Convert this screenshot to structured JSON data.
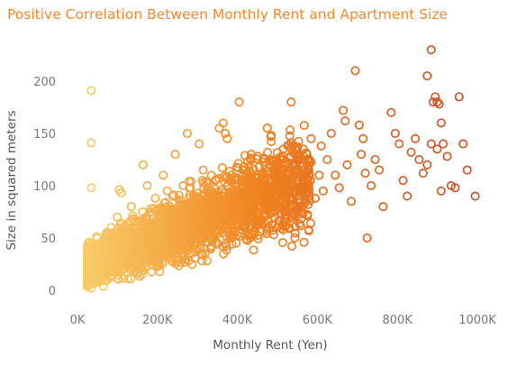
{
  "chart_data": {
    "type": "scatter",
    "title": "Positive Correlation Between Monthly Rent and Apartment Size",
    "xlabel": "Monthly Rent (Yen)",
    "ylabel": "Size in squared meters",
    "xlim": [
      0,
      1000000
    ],
    "ylim": [
      0,
      230
    ],
    "x_ticks": [
      {
        "value": 0,
        "label": "0K"
      },
      {
        "value": 200000,
        "label": "200K"
      },
      {
        "value": 400000,
        "label": "400K"
      },
      {
        "value": 600000,
        "label": "600K"
      },
      {
        "value": 800000,
        "label": "800K"
      },
      {
        "value": 1000000,
        "label": "1000K"
      }
    ],
    "y_ticks": [
      {
        "value": 0,
        "label": "0"
      },
      {
        "value": 50,
        "label": "50"
      },
      {
        "value": 100,
        "label": "100"
      },
      {
        "value": 150,
        "label": "150"
      },
      {
        "value": 200,
        "label": "200"
      }
    ],
    "grid": false,
    "legend": "none",
    "marker": "hollow-circle",
    "color_scale": {
      "low": "#f7cf6a",
      "mid": "#f1811f",
      "high": "#c94f2a"
    },
    "points": [
      [
        30000,
        191
      ],
      [
        30000,
        141
      ],
      [
        30000,
        98
      ],
      [
        30000,
        18
      ],
      [
        35000,
        40
      ],
      [
        40000,
        30
      ],
      [
        45000,
        50
      ],
      [
        50000,
        25
      ],
      [
        55000,
        38
      ],
      [
        60000,
        45
      ],
      [
        65000,
        22
      ],
      [
        70000,
        55
      ],
      [
        75000,
        35
      ],
      [
        80000,
        60
      ],
      [
        85000,
        28
      ],
      [
        90000,
        48
      ],
      [
        95000,
        70
      ],
      [
        100000,
        96
      ],
      [
        105000,
        93
      ],
      [
        110000,
        40
      ],
      [
        120000,
        55
      ],
      [
        130000,
        80
      ],
      [
        140000,
        65
      ],
      [
        150000,
        45
      ],
      [
        160000,
        120
      ],
      [
        170000,
        100
      ],
      [
        180000,
        75
      ],
      [
        190000,
        88
      ],
      [
        200000,
        60
      ],
      [
        210000,
        110
      ],
      [
        220000,
        95
      ],
      [
        230000,
        70
      ],
      [
        240000,
        130
      ],
      [
        250000,
        85
      ],
      [
        260000,
        100
      ],
      [
        270000,
        150
      ],
      [
        280000,
        72
      ],
      [
        290000,
        90
      ],
      [
        300000,
        140
      ],
      [
        310000,
        115
      ],
      [
        320000,
        96
      ],
      [
        330000,
        80
      ],
      [
        340000,
        105
      ],
      [
        350000,
        155
      ],
      [
        360000,
        160
      ],
      [
        365000,
        150
      ],
      [
        370000,
        145
      ],
      [
        380000,
        110
      ],
      [
        390000,
        90
      ],
      [
        400000,
        180
      ],
      [
        410000,
        75
      ],
      [
        420000,
        100
      ],
      [
        430000,
        130
      ],
      [
        440000,
        85
      ],
      [
        450000,
        118
      ],
      [
        460000,
        95
      ],
      [
        470000,
        155
      ],
      [
        480000,
        148
      ],
      [
        490000,
        105
      ],
      [
        500000,
        85
      ],
      [
        510000,
        125
      ],
      [
        520000,
        110
      ],
      [
        530000,
        180
      ],
      [
        540000,
        95
      ],
      [
        550000,
        120
      ],
      [
        560000,
        135
      ],
      [
        570000,
        100
      ],
      [
        580000,
        145
      ],
      [
        590000,
        88
      ],
      [
        600000,
        110
      ],
      [
        605000,
        138
      ],
      [
        610000,
        95
      ],
      [
        620000,
        125
      ],
      [
        630000,
        150
      ],
      [
        640000,
        110
      ],
      [
        650000,
        98
      ],
      [
        660000,
        172
      ],
      [
        665000,
        162
      ],
      [
        670000,
        120
      ],
      [
        680000,
        85
      ],
      [
        690000,
        210
      ],
      [
        700000,
        158
      ],
      [
        705000,
        130
      ],
      [
        710000,
        145
      ],
      [
        715000,
        112
      ],
      [
        720000,
        50
      ],
      [
        730000,
        100
      ],
      [
        740000,
        125
      ],
      [
        750000,
        115
      ],
      [
        760000,
        80
      ],
      [
        780000,
        170
      ],
      [
        790000,
        150
      ],
      [
        800000,
        140
      ],
      [
        810000,
        105
      ],
      [
        820000,
        90
      ],
      [
        830000,
        132
      ],
      [
        840000,
        145
      ],
      [
        850000,
        125
      ],
      [
        860000,
        112
      ],
      [
        870000,
        120
      ],
      [
        880000,
        230
      ],
      [
        885000,
        180
      ],
      [
        890000,
        185
      ],
      [
        895000,
        180
      ],
      [
        900000,
        178
      ],
      [
        905000,
        160
      ],
      [
        910000,
        140
      ],
      [
        920000,
        128
      ],
      [
        930000,
        100
      ],
      [
        940000,
        98
      ],
      [
        950000,
        185
      ],
      [
        960000,
        140
      ],
      [
        970000,
        115
      ],
      [
        990000,
        90
      ],
      [
        870000,
        205
      ],
      [
        895000,
        135
      ],
      [
        905000,
        95
      ],
      [
        880000,
        140
      ]
    ]
  }
}
